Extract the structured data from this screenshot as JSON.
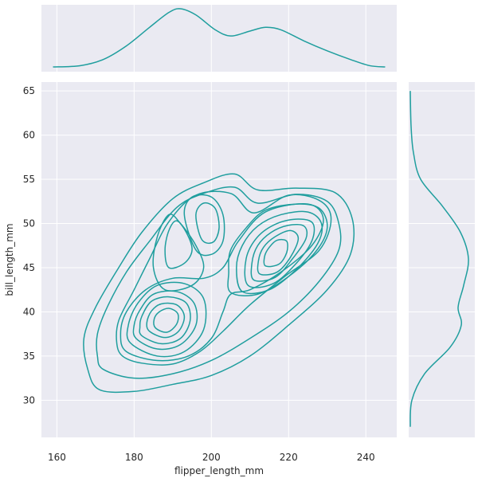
{
  "chart_data": {
    "type": "kde_joint",
    "style": {
      "panel_background": "#eaeaf2",
      "grid_color": "#ffffff",
      "line_color": "#1f9e9e",
      "grid": true
    },
    "xlabel": "flipper_length_mm",
    "ylabel": "bill_length_mm",
    "xlim": [
      156,
      248
    ],
    "ylim": [
      25.8,
      66
    ],
    "xticks": [
      160,
      180,
      200,
      220,
      240
    ],
    "yticks": [
      30,
      35,
      40,
      45,
      50,
      55,
      60,
      65
    ],
    "marginal_x_curve": [
      [
        159,
        0.0
      ],
      [
        166,
        0.001
      ],
      [
        172,
        0.006
      ],
      [
        178,
        0.017
      ],
      [
        184,
        0.032
      ],
      [
        189,
        0.044
      ],
      [
        192,
        0.047
      ],
      [
        196,
        0.042
      ],
      [
        201,
        0.03
      ],
      [
        205,
        0.025
      ],
      [
        210,
        0.029
      ],
      [
        214,
        0.032
      ],
      [
        218,
        0.03
      ],
      [
        224,
        0.021
      ],
      [
        230,
        0.013
      ],
      [
        236,
        0.006
      ],
      [
        241,
        0.001
      ],
      [
        245,
        0.0
      ]
    ],
    "marginal_y_curve": [
      [
        27.0,
        0.0
      ],
      [
        30.0,
        0.002
      ],
      [
        33.0,
        0.018
      ],
      [
        36.0,
        0.05
      ],
      [
        38.5,
        0.064
      ],
      [
        40.5,
        0.06
      ],
      [
        43.0,
        0.067
      ],
      [
        46.0,
        0.073
      ],
      [
        49.0,
        0.063
      ],
      [
        52.0,
        0.04
      ],
      [
        55.0,
        0.013
      ],
      [
        58.0,
        0.004
      ],
      [
        61.0,
        0.001
      ],
      [
        65.0,
        0.0
      ]
    ],
    "contours": [
      [
        [
          171,
          31.2
        ],
        [
          180,
          31.0
        ],
        [
          190,
          31.8
        ],
        [
          200,
          32.8
        ],
        [
          210,
          35.0
        ],
        [
          220,
          38.5
        ],
        [
          230,
          42.5
        ],
        [
          236,
          46.5
        ],
        [
          236.5,
          50.5
        ],
        [
          232,
          53.5
        ],
        [
          222,
          54.0
        ],
        [
          212,
          53.8
        ],
        [
          206,
          55.6
        ],
        [
          198,
          54.6
        ],
        [
          190,
          52.8
        ],
        [
          182,
          49.0
        ],
        [
          176,
          45.0
        ],
        [
          170,
          40.5
        ],
        [
          167,
          37.0
        ],
        [
          168,
          33.5
        ],
        [
          171,
          31.2
        ]
      ],
      [
        [
          172,
          33.5
        ],
        [
          180,
          32.5
        ],
        [
          190,
          33.0
        ],
        [
          200,
          34.5
        ],
        [
          210,
          37.0
        ],
        [
          220,
          40.0
        ],
        [
          228,
          43.5
        ],
        [
          233,
          47.0
        ],
        [
          233,
          50.0
        ],
        [
          230,
          52.5
        ],
        [
          222,
          53.3
        ],
        [
          212,
          52.3
        ],
        [
          206,
          54.1
        ],
        [
          198,
          53.4
        ],
        [
          191,
          51.8
        ],
        [
          184,
          48.0
        ],
        [
          178,
          44.5
        ],
        [
          173,
          40.5
        ],
        [
          170.5,
          37.5
        ],
        [
          170.5,
          35.0
        ],
        [
          172,
          33.5
        ]
      ],
      [
        [
          177,
          35.0
        ],
        [
          182,
          34.2
        ],
        [
          190,
          34.1
        ],
        [
          197,
          35.5
        ],
        [
          203,
          37.8
        ],
        [
          210,
          40.8
        ],
        [
          219,
          44.0
        ],
        [
          228,
          47.0
        ],
        [
          231,
          50.5
        ],
        [
          228,
          52.6
        ],
        [
          220,
          53.2
        ],
        [
          211,
          51.2
        ],
        [
          205,
          53.4
        ],
        [
          196,
          53.2
        ],
        [
          189,
          50.2
        ],
        [
          184,
          46.0
        ],
        [
          180,
          42.5
        ],
        [
          176,
          39.0
        ],
        [
          175.5,
          36.5
        ],
        [
          177,
          35.0
        ]
      ],
      [
        [
          178,
          35.5
        ],
        [
          186,
          34.5
        ],
        [
          194,
          35.0
        ],
        [
          200,
          37.0
        ],
        [
          203,
          40.0
        ],
        [
          205,
          42.0
        ],
        [
          210,
          42.5
        ],
        [
          218,
          44.5
        ],
        [
          226,
          47.5
        ],
        [
          229,
          50.5
        ],
        [
          225,
          52.2
        ],
        [
          214,
          51.3
        ],
        [
          207,
          48.0
        ],
        [
          203,
          45.0
        ],
        [
          198,
          43.8
        ],
        [
          190,
          43.8
        ],
        [
          183,
          42.5
        ],
        [
          178,
          40.0
        ],
        [
          176.5,
          37.5
        ],
        [
          178,
          35.5
        ]
      ],
      [
        [
          179,
          36.5
        ],
        [
          186,
          35.0
        ],
        [
          193,
          35.5
        ],
        [
          198,
          38.0
        ],
        [
          198,
          41.5
        ],
        [
          193,
          43.2
        ],
        [
          186,
          43.0
        ],
        [
          181,
          41.0
        ],
        [
          178.5,
          38.5
        ],
        [
          179,
          36.5
        ]
      ],
      [
        [
          180.5,
          37.0
        ],
        [
          186,
          35.8
        ],
        [
          192,
          36.3
        ],
        [
          196,
          38.5
        ],
        [
          195.5,
          41.0
        ],
        [
          191,
          42.3
        ],
        [
          185,
          42.0
        ],
        [
          181.5,
          40.2
        ],
        [
          180,
          38.5
        ],
        [
          180.5,
          37.0
        ]
      ],
      [
        [
          182,
          37.3
        ],
        [
          187,
          36.4
        ],
        [
          192,
          37.0
        ],
        [
          194.5,
          39.0
        ],
        [
          193.5,
          41.0
        ],
        [
          189,
          41.7
        ],
        [
          184.5,
          41.2
        ],
        [
          182,
          39.5
        ],
        [
          181.5,
          38.3
        ],
        [
          182,
          37.3
        ]
      ],
      [
        [
          184,
          37.8
        ],
        [
          188,
          37.1
        ],
        [
          191.5,
          37.8
        ],
        [
          193,
          39.5
        ],
        [
          191,
          40.8
        ],
        [
          187,
          40.9
        ],
        [
          184.5,
          40.1
        ],
        [
          183.3,
          38.8
        ],
        [
          184,
          37.8
        ]
      ],
      [
        [
          185.5,
          38.2
        ],
        [
          188.5,
          37.7
        ],
        [
          191,
          38.6
        ],
        [
          191.3,
          39.8
        ],
        [
          189,
          40.4
        ],
        [
          186.5,
          40.0
        ],
        [
          185.2,
          39.2
        ],
        [
          185.5,
          38.2
        ]
      ],
      [
        [
          188,
          42.5
        ],
        [
          195,
          43.0
        ],
        [
          198,
          45.0
        ],
        [
          196,
          47.5
        ],
        [
          192,
          50.0
        ],
        [
          189,
          51.0
        ],
        [
          186,
          48.5
        ],
        [
          185,
          45.0
        ],
        [
          188,
          42.5
        ]
      ],
      [
        [
          189,
          45.0
        ],
        [
          193,
          45.5
        ],
        [
          195,
          47.0
        ],
        [
          193.5,
          49.0
        ],
        [
          191,
          50.3
        ],
        [
          189,
          49.2
        ],
        [
          188,
          47.0
        ],
        [
          189,
          45.0
        ]
      ],
      [
        [
          196,
          47.0
        ],
        [
          200,
          46.5
        ],
        [
          203,
          48.0
        ],
        [
          203,
          51.0
        ],
        [
          200,
          53.0
        ],
        [
          195,
          53.0
        ],
        [
          193,
          51.0
        ],
        [
          196,
          47.0
        ]
      ],
      [
        [
          197.5,
          48.2
        ],
        [
          200.5,
          47.9
        ],
        [
          202,
          49.5
        ],
        [
          201,
          51.7
        ],
        [
          198,
          52.3
        ],
        [
          196,
          51.0
        ],
        [
          197.5,
          48.2
        ]
      ],
      [
        [
          205,
          42.2
        ],
        [
          212,
          42.0
        ],
        [
          220,
          44.0
        ],
        [
          227,
          46.8
        ],
        [
          230,
          49.5
        ],
        [
          228,
          51.7
        ],
        [
          222,
          52.2
        ],
        [
          214,
          51.5
        ],
        [
          209,
          49.5
        ],
        [
          205,
          47.0
        ],
        [
          204.5,
          44.5
        ],
        [
          205,
          42.2
        ]
      ],
      [
        [
          208,
          42.3
        ],
        [
          215,
          42.5
        ],
        [
          222,
          44.8
        ],
        [
          227.5,
          47.7
        ],
        [
          228.5,
          50.0
        ],
        [
          225,
          51.3
        ],
        [
          218,
          51.0
        ],
        [
          212,
          49.7
        ],
        [
          208,
          47.5
        ],
        [
          206.5,
          45.0
        ],
        [
          208,
          42.3
        ]
      ],
      [
        [
          209.5,
          43.0
        ],
        [
          216,
          43.2
        ],
        [
          222,
          45.5
        ],
        [
          226,
          48.0
        ],
        [
          226.3,
          50.0
        ],
        [
          222.5,
          50.5
        ],
        [
          217,
          50.0
        ],
        [
          212,
          48.5
        ],
        [
          209,
          46.0
        ],
        [
          209.5,
          43.0
        ]
      ],
      [
        [
          211,
          43.6
        ],
        [
          216.5,
          43.9
        ],
        [
          221,
          46.0
        ],
        [
          224.5,
          48.3
        ],
        [
          224,
          49.7
        ],
        [
          220,
          49.8
        ],
        [
          215.5,
          49.0
        ],
        [
          212,
          47.5
        ],
        [
          210.5,
          45.5
        ],
        [
          211,
          43.6
        ]
      ],
      [
        [
          212.5,
          44.3
        ],
        [
          217,
          44.5
        ],
        [
          220.5,
          46.2
        ],
        [
          222.5,
          48.3
        ],
        [
          220.5,
          49.2
        ],
        [
          216.5,
          48.5
        ],
        [
          213.5,
          47.3
        ],
        [
          212.2,
          45.8
        ],
        [
          212.5,
          44.3
        ]
      ],
      [
        [
          214,
          45.2
        ],
        [
          217.5,
          45.4
        ],
        [
          219.5,
          46.7
        ],
        [
          219.5,
          48.0
        ],
        [
          217,
          48.1
        ],
        [
          215,
          47.3
        ],
        [
          213.8,
          46.3
        ],
        [
          214,
          45.2
        ]
      ]
    ]
  }
}
